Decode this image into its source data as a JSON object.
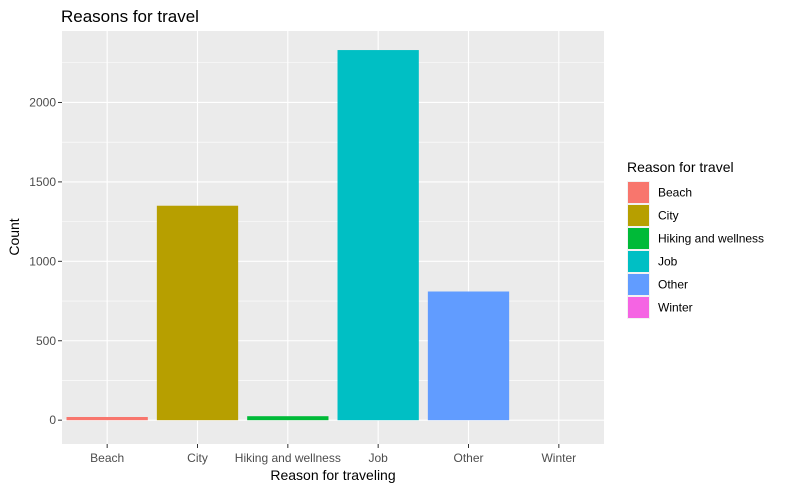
{
  "chart_data": {
    "type": "bar",
    "title": "Reasons for travel",
    "xlabel": "Reason for traveling",
    "ylabel": "Count",
    "categories": [
      "Beach",
      "City",
      "Hiking and wellness",
      "Job",
      "Other",
      "Winter"
    ],
    "values": [
      20,
      1350,
      25,
      2330,
      810,
      0
    ],
    "colors": [
      "#F8766D",
      "#B79F00",
      "#00BA38",
      "#00BFC4",
      "#619CFF",
      "#F564E3"
    ],
    "ylim": [
      -150,
      2450
    ],
    "yticks": [
      0,
      500,
      1000,
      1500,
      2000
    ],
    "yticklabels": [
      "0",
      "500",
      "1000",
      "1500",
      "2000"
    ],
    "grid": true,
    "legend": {
      "title": "Reason for travel",
      "placement": "right",
      "entries": [
        "Beach",
        "City",
        "Hiking and wellness",
        "Job",
        "Other",
        "Winter"
      ]
    },
    "panel_background": "#EBEBEB",
    "grid_color": "#FFFFFF"
  }
}
